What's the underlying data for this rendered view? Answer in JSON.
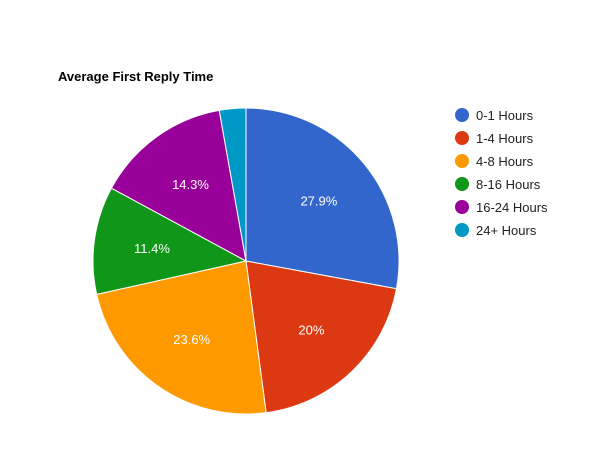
{
  "chart_data": {
    "type": "pie",
    "title": "Average First Reply Time",
    "legend_position": "right",
    "slices": [
      {
        "name": "0-1 Hours",
        "value": 27.9,
        "label": "27.9%",
        "color": "#3366cc"
      },
      {
        "name": "1-4 Hours",
        "value": 20.0,
        "label": "20%",
        "color": "#dc3912"
      },
      {
        "name": "4-8 Hours",
        "value": 23.6,
        "label": "23.6%",
        "color": "#ff9900"
      },
      {
        "name": "8-16 Hours",
        "value": 11.4,
        "label": "11.4%",
        "color": "#109618"
      },
      {
        "name": "16-24 Hours",
        "value": 14.3,
        "label": "14.3%",
        "color": "#990099"
      },
      {
        "name": "24+ Hours",
        "value": 2.8,
        "label": "",
        "color": "#0099c6"
      }
    ]
  }
}
